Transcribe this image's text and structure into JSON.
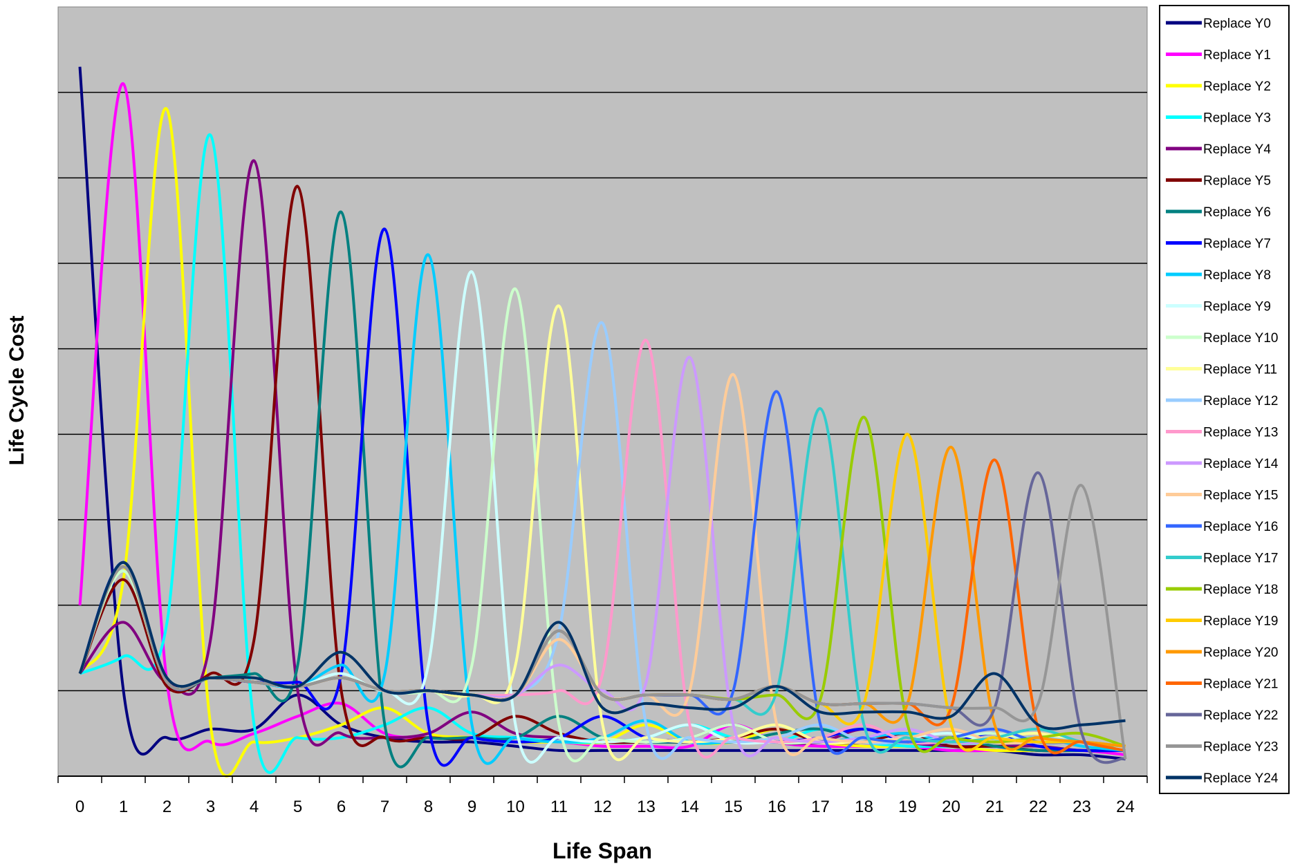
{
  "chart_data": {
    "type": "line",
    "title": "",
    "xlabel": "Life Span",
    "ylabel": "Life Cycle Cost",
    "x": [
      0,
      1,
      2,
      3,
      4,
      5,
      6,
      7,
      8,
      9,
      10,
      11,
      12,
      13,
      14,
      15,
      16,
      17,
      18,
      19,
      20,
      21,
      22,
      23,
      24
    ],
    "ylim": [
      0,
      9
    ],
    "y_tick_labels_shown": false,
    "grid": "horizontal",
    "plot_background": "#c0c0c0",
    "legend_position": "right",
    "series": [
      {
        "name": "Replace Y0",
        "color": "#000080",
        "values": [
          8.3,
          1.0,
          0.45,
          0.55,
          0.55,
          0.95,
          0.6,
          0.45,
          0.4,
          0.4,
          0.35,
          0.3,
          0.3,
          0.3,
          0.3,
          0.3,
          0.3,
          0.3,
          0.3,
          0.3,
          0.3,
          0.3,
          0.25,
          0.25,
          0.2
        ]
      },
      {
        "name": "Replace Y1",
        "color": "#ff00ff",
        "values": [
          2.0,
          8.1,
          1.1,
          0.4,
          0.5,
          0.7,
          0.85,
          0.5,
          0.45,
          0.45,
          0.4,
          0.4,
          0.35,
          0.35,
          0.35,
          0.6,
          0.4,
          0.35,
          0.35,
          0.35,
          0.3,
          0.3,
          0.3,
          0.3,
          0.25
        ]
      },
      {
        "name": "Replace Y2",
        "color": "#ffff00",
        "values": [
          1.2,
          2.3,
          7.8,
          0.6,
          0.4,
          0.45,
          0.6,
          0.8,
          0.5,
          0.45,
          0.4,
          0.4,
          0.4,
          0.6,
          0.4,
          0.4,
          0.55,
          0.4,
          0.35,
          0.35,
          0.35,
          0.3,
          0.3,
          0.3,
          0.3
        ]
      },
      {
        "name": "Replace Y3",
        "color": "#00ffff",
        "values": [
          1.2,
          1.4,
          1.8,
          7.5,
          0.6,
          0.45,
          0.45,
          0.6,
          0.8,
          0.5,
          0.45,
          0.4,
          0.4,
          0.45,
          0.6,
          0.45,
          0.4,
          0.55,
          0.4,
          0.35,
          0.35,
          0.35,
          0.35,
          0.3,
          0.3
        ]
      },
      {
        "name": "Replace Y4",
        "color": "#800080",
        "values": [
          1.2,
          1.8,
          1.1,
          1.6,
          7.2,
          1.0,
          0.5,
          0.45,
          0.5,
          0.75,
          0.5,
          0.45,
          0.4,
          0.4,
          0.45,
          0.6,
          0.4,
          0.4,
          0.55,
          0.4,
          0.35,
          0.35,
          0.35,
          0.3,
          0.3
        ]
      },
      {
        "name": "Replace Y5",
        "color": "#800000",
        "values": [
          1.2,
          2.3,
          1.05,
          1.2,
          1.6,
          6.9,
          1.0,
          0.45,
          0.45,
          0.45,
          0.7,
          0.5,
          0.4,
          0.4,
          0.4,
          0.45,
          0.55,
          0.4,
          0.4,
          0.5,
          0.35,
          0.35,
          0.3,
          0.3,
          0.3
        ]
      },
      {
        "name": "Replace Y6",
        "color": "#008080",
        "values": [
          1.2,
          2.5,
          1.1,
          1.15,
          1.2,
          1.3,
          6.6,
          0.6,
          0.45,
          0.45,
          0.45,
          0.7,
          0.45,
          0.4,
          0.4,
          0.4,
          0.5,
          0.55,
          0.4,
          0.4,
          0.45,
          0.35,
          0.3,
          0.3,
          0.3
        ]
      },
      {
        "name": "Replace Y7",
        "color": "#0000ff",
        "values": [
          1.2,
          2.5,
          1.1,
          1.15,
          1.1,
          1.1,
          1.2,
          6.4,
          0.6,
          0.45,
          0.4,
          0.45,
          0.7,
          0.45,
          0.4,
          0.4,
          0.4,
          0.45,
          0.55,
          0.4,
          0.4,
          0.5,
          0.35,
          0.3,
          0.3
        ]
      },
      {
        "name": "Replace Y8",
        "color": "#00ccff",
        "values": [
          1.2,
          2.4,
          1.1,
          1.15,
          1.1,
          1.05,
          1.3,
          1.2,
          6.1,
          0.6,
          0.45,
          0.4,
          0.45,
          0.65,
          0.4,
          0.4,
          0.4,
          0.4,
          0.45,
          0.5,
          0.4,
          0.4,
          0.45,
          0.35,
          0.3
        ]
      },
      {
        "name": "Replace Y9",
        "color": "#ccffff",
        "values": [
          1.2,
          2.4,
          1.1,
          1.15,
          1.1,
          1.05,
          1.2,
          1.0,
          1.3,
          5.9,
          0.6,
          0.45,
          0.4,
          0.45,
          0.6,
          0.4,
          0.4,
          0.4,
          0.4,
          0.45,
          0.5,
          0.4,
          0.4,
          0.4,
          0.3
        ]
      },
      {
        "name": "Replace Y10",
        "color": "#ccffcc",
        "values": [
          1.2,
          2.4,
          1.1,
          1.15,
          1.1,
          1.05,
          1.15,
          1.0,
          1.0,
          1.3,
          5.7,
          0.6,
          0.45,
          0.4,
          0.45,
          0.6,
          0.4,
          0.4,
          0.4,
          0.4,
          0.45,
          0.5,
          0.4,
          0.4,
          0.35
        ]
      },
      {
        "name": "Replace Y11",
        "color": "#ffff99",
        "values": [
          1.2,
          2.45,
          1.1,
          1.15,
          1.1,
          1.05,
          1.15,
          1.0,
          1.0,
          0.95,
          1.3,
          5.5,
          0.6,
          0.45,
          0.4,
          0.45,
          0.6,
          0.4,
          0.4,
          0.4,
          0.4,
          0.45,
          0.5,
          0.4,
          0.35
        ]
      },
      {
        "name": "Replace Y12",
        "color": "#99ccff",
        "values": [
          1.2,
          2.45,
          1.1,
          1.15,
          1.1,
          1.05,
          1.15,
          1.0,
          1.0,
          0.95,
          0.95,
          1.7,
          5.3,
          0.6,
          0.45,
          0.4,
          0.45,
          0.6,
          0.4,
          0.4,
          0.4,
          0.4,
          0.45,
          0.4,
          0.35
        ]
      },
      {
        "name": "Replace Y13",
        "color": "#ff99cc",
        "values": [
          1.2,
          2.45,
          1.1,
          1.15,
          1.1,
          1.05,
          1.15,
          1.0,
          1.0,
          0.95,
          0.95,
          1.0,
          1.2,
          5.1,
          0.6,
          0.45,
          0.4,
          0.45,
          0.6,
          0.4,
          0.4,
          0.4,
          0.4,
          0.4,
          0.35
        ]
      },
      {
        "name": "Replace Y14",
        "color": "#cc99ff",
        "values": [
          1.2,
          2.45,
          1.1,
          1.15,
          1.1,
          1.05,
          1.15,
          1.0,
          1.0,
          0.95,
          0.95,
          1.3,
          1.0,
          1.1,
          4.9,
          0.6,
          0.45,
          0.4,
          0.45,
          0.55,
          0.4,
          0.4,
          0.4,
          0.4,
          0.35
        ]
      },
      {
        "name": "Replace Y15",
        "color": "#ffcc99",
        "values": [
          1.2,
          2.45,
          1.1,
          1.15,
          1.1,
          1.05,
          1.15,
          1.0,
          1.0,
          0.95,
          0.95,
          1.6,
          0.95,
          0.95,
          1.0,
          4.7,
          0.6,
          0.45,
          0.4,
          0.45,
          0.55,
          0.4,
          0.4,
          0.4,
          0.35
        ]
      },
      {
        "name": "Replace Y16",
        "color": "#3366ff",
        "values": [
          1.2,
          2.45,
          1.1,
          1.15,
          1.1,
          1.05,
          1.15,
          1.0,
          1.0,
          0.95,
          0.95,
          1.7,
          0.95,
          0.95,
          0.95,
          1.0,
          4.5,
          0.6,
          0.45,
          0.4,
          0.45,
          0.55,
          0.4,
          0.4,
          0.35
        ]
      },
      {
        "name": "Replace Y17",
        "color": "#33cccc",
        "values": [
          1.2,
          2.45,
          1.1,
          1.15,
          1.1,
          1.05,
          1.15,
          1.0,
          1.0,
          0.95,
          0.95,
          1.7,
          0.95,
          0.95,
          0.95,
          0.9,
          1.0,
          4.3,
          0.6,
          0.45,
          0.4,
          0.45,
          0.55,
          0.4,
          0.35
        ]
      },
      {
        "name": "Replace Y18",
        "color": "#99cc00",
        "values": [
          1.2,
          2.45,
          1.1,
          1.15,
          1.1,
          1.05,
          1.15,
          1.0,
          1.0,
          0.95,
          0.95,
          1.7,
          0.95,
          0.95,
          0.95,
          0.9,
          0.95,
          0.9,
          4.2,
          0.6,
          0.45,
          0.4,
          0.45,
          0.5,
          0.35
        ]
      },
      {
        "name": "Replace Y19",
        "color": "#ffcc00",
        "values": [
          1.2,
          2.45,
          1.1,
          1.15,
          1.1,
          1.05,
          1.15,
          1.0,
          1.0,
          0.95,
          0.95,
          1.7,
          0.95,
          0.95,
          0.95,
          0.9,
          1.05,
          0.85,
          0.85,
          4.0,
          0.6,
          0.45,
          0.4,
          0.4,
          0.35
        ]
      },
      {
        "name": "Replace Y20",
        "color": "#ff9900",
        "values": [
          1.2,
          2.45,
          1.1,
          1.15,
          1.1,
          1.05,
          1.15,
          1.0,
          1.0,
          0.95,
          0.95,
          1.7,
          0.95,
          0.95,
          0.95,
          0.9,
          1.05,
          0.85,
          0.85,
          0.85,
          3.85,
          0.6,
          0.45,
          0.4,
          0.35
        ]
      },
      {
        "name": "Replace Y21",
        "color": "#ff6600",
        "values": [
          1.2,
          2.45,
          1.1,
          1.15,
          1.1,
          1.05,
          1.15,
          1.0,
          1.0,
          0.95,
          0.95,
          1.7,
          0.95,
          0.95,
          0.95,
          0.9,
          1.05,
          0.85,
          0.85,
          0.85,
          0.8,
          3.7,
          0.55,
          0.4,
          0.3
        ]
      },
      {
        "name": "Replace Y22",
        "color": "#666699",
        "values": [
          1.2,
          2.45,
          1.1,
          1.15,
          1.1,
          1.05,
          1.15,
          1.0,
          1.0,
          0.95,
          0.95,
          1.7,
          0.95,
          0.95,
          0.95,
          0.9,
          1.05,
          0.85,
          0.85,
          0.85,
          0.8,
          0.8,
          3.55,
          0.5,
          0.2
        ]
      },
      {
        "name": "Replace Y23",
        "color": "#969696",
        "values": [
          1.2,
          2.45,
          1.1,
          1.15,
          1.1,
          1.05,
          1.15,
          1.0,
          1.0,
          0.95,
          0.95,
          1.7,
          0.95,
          0.95,
          0.95,
          0.9,
          1.05,
          0.85,
          0.85,
          0.85,
          0.8,
          0.8,
          0.85,
          3.4,
          0.2
        ]
      },
      {
        "name": "Replace Y24",
        "color": "#003366",
        "values": [
          1.2,
          2.5,
          1.15,
          1.15,
          1.15,
          1.05,
          1.45,
          1.0,
          1.0,
          0.95,
          0.95,
          1.8,
          0.8,
          0.85,
          0.8,
          0.8,
          1.05,
          0.75,
          0.75,
          0.75,
          0.7,
          1.2,
          0.6,
          0.6,
          0.65
        ]
      }
    ]
  }
}
